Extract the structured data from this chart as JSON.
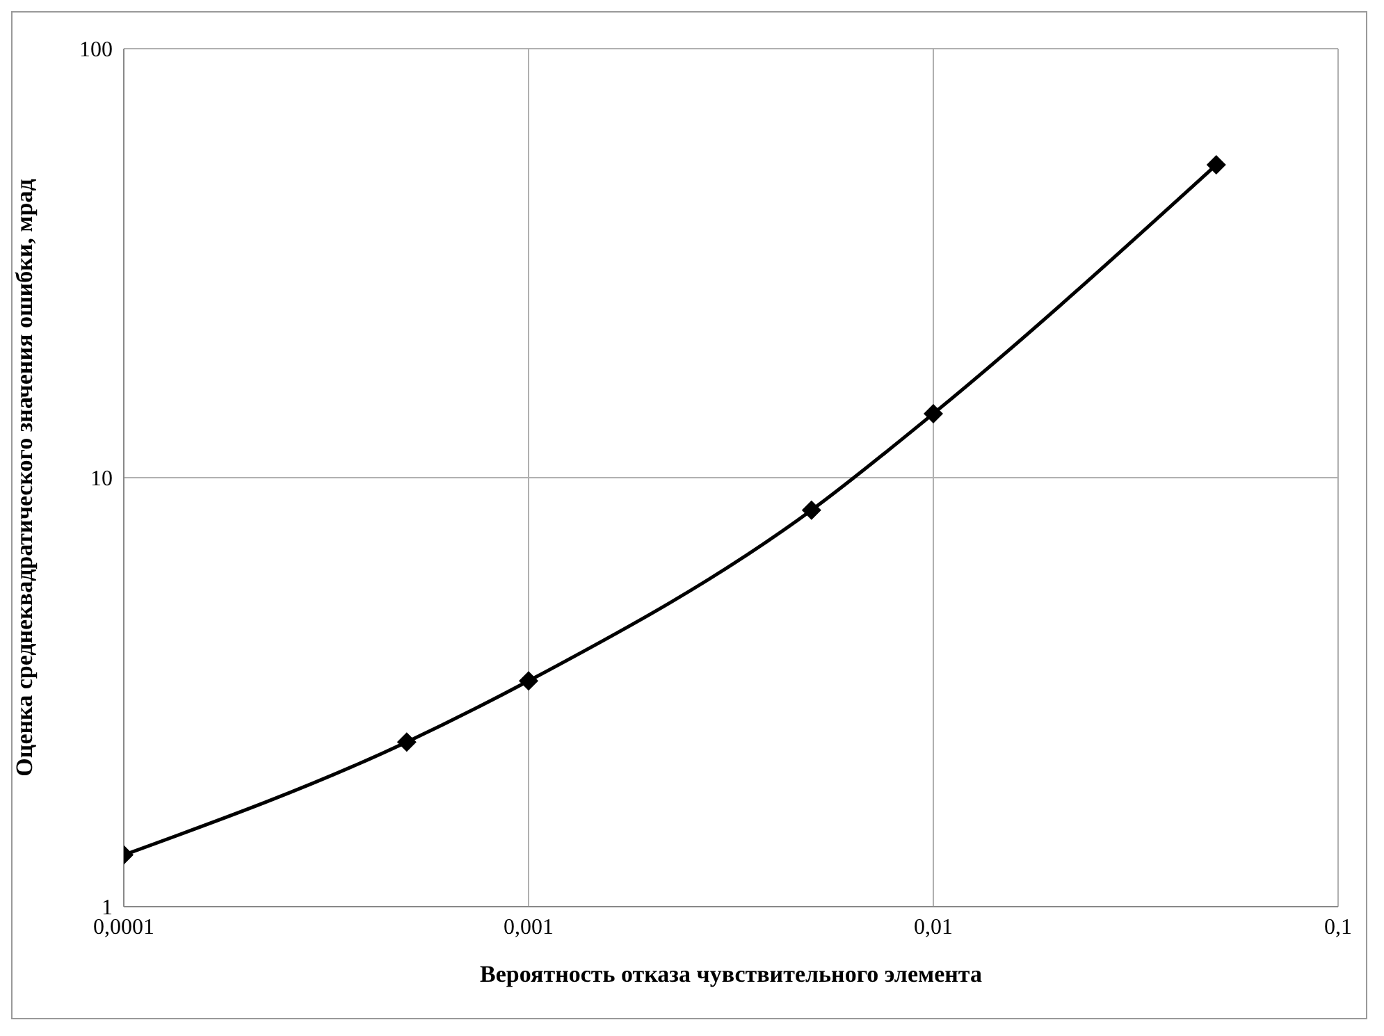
{
  "chart_data": {
    "type": "line",
    "xlabel": "Вероятность отказа чувствительного элемента",
    "ylabel": "Оценка среднеквадратического значения ошибки, мрад",
    "x": [
      0.0001,
      0.0005,
      0.001,
      0.005,
      0.01,
      0.05
    ],
    "series": [
      {
        "color": "#000000",
        "values": [
          1.32,
          2.42,
          3.36,
          8.4,
          14.1,
          53.6
        ]
      }
    ],
    "log": "xy",
    "xlim": [
      0.0001,
      0.1
    ],
    "ylim": [
      1,
      100
    ],
    "xticks": [
      {
        "value": 0.0001,
        "label": "0,0001"
      },
      {
        "value": 0.001,
        "label": "0,001"
      },
      {
        "value": 0.01,
        "label": "0,01"
      },
      {
        "value": 0.1,
        "label": "0,1"
      }
    ],
    "yticks": [
      1,
      10,
      100
    ],
    "grid": true,
    "marker": "diamond",
    "line_style": "solid"
  }
}
